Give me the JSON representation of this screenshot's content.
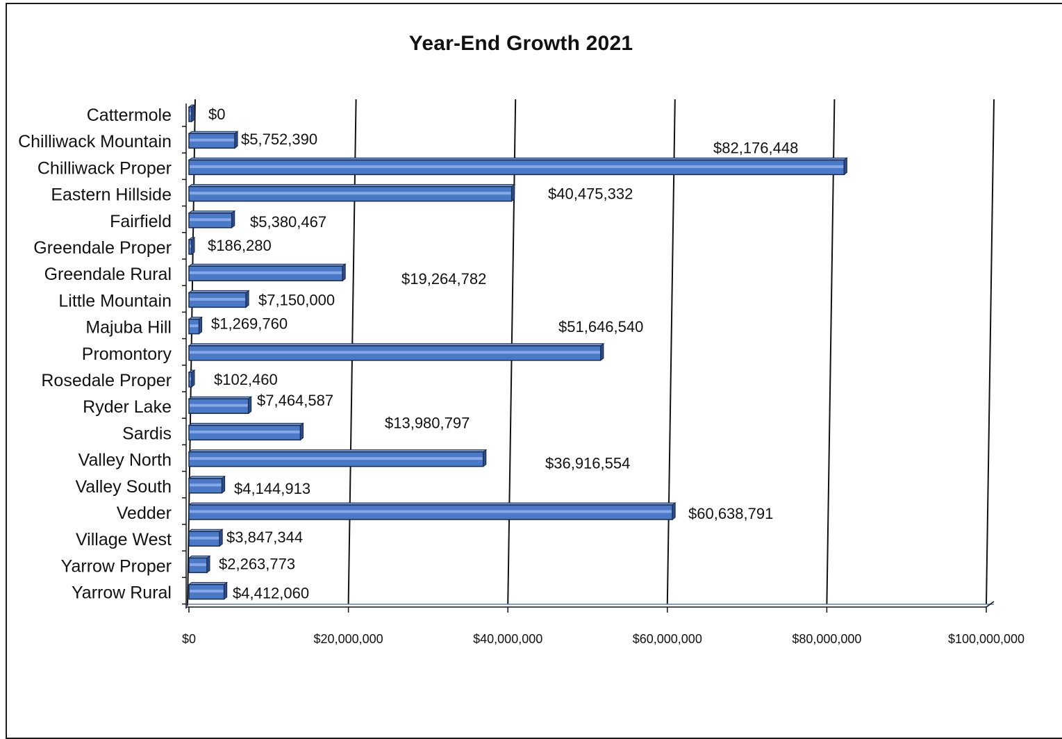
{
  "chart_data": {
    "type": "bar",
    "orientation": "horizontal",
    "title": "Year-End Growth 2021",
    "xlabel": "",
    "ylabel": "",
    "xlim": [
      0,
      100000000
    ],
    "grid": true,
    "bar_color": "#4a79c8",
    "categories": [
      "Cattermole",
      "Chilliwack Mountain",
      "Chilliwack Proper",
      "Eastern Hillside",
      "Fairfield",
      "Greendale Proper",
      "Greendale Rural",
      "Little Mountain",
      "Majuba Hill",
      "Promontory",
      "Rosedale Proper",
      "Ryder Lake",
      "Sardis",
      "Valley North",
      "Valley South",
      "Vedder",
      "Village West",
      "Yarrow Proper",
      "Yarrow Rural"
    ],
    "values": [
      0,
      5752390,
      82176448,
      40475332,
      5380467,
      186280,
      19264782,
      7150000,
      1269760,
      51646540,
      102460,
      7464587,
      13980797,
      36916554,
      4144913,
      60638791,
      3847344,
      2263773,
      4412060
    ],
    "data_labels": [
      "$0",
      "$5,752,390",
      "$82,176,448",
      "$40,475,332",
      "$5,380,467",
      "$186,280",
      "$19,264,782",
      "$7,150,000",
      "$1,269,760",
      "$51,646,540",
      "$102,460",
      "$7,464,587",
      "$13,980,797",
      "$36,916,554",
      "$4,144,913",
      "$60,638,791",
      "$3,847,344",
      "$2,263,773",
      "$4,412,060"
    ],
    "x_ticks": [
      0,
      20000000,
      40000000,
      60000000,
      80000000,
      100000000
    ],
    "x_tick_labels": [
      "$0",
      "$20,000,000",
      "$40,000,000",
      "$60,000,000",
      "$80,000,000",
      "$100,000,000"
    ]
  }
}
